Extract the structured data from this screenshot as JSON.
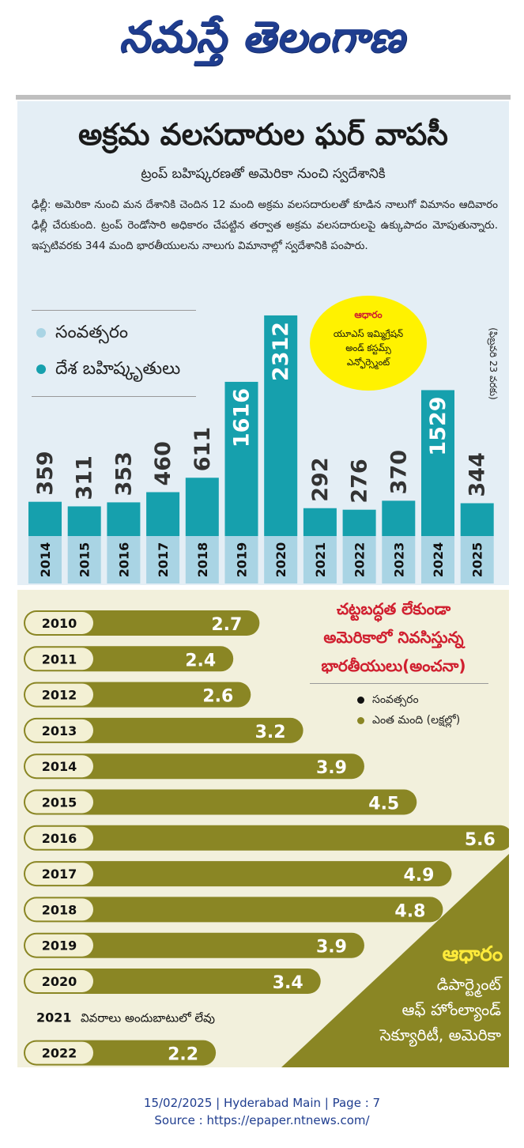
{
  "masthead": {
    "title": "నమస్తే తెలంగాణ"
  },
  "article": {
    "headline": "అక్రమ వలసదారుల ఘర్ వాపసీ",
    "subhead": "ట్రంప్ బహిష్కరణతో అమెరికా నుంచి స్వదేశానికి",
    "body": "ఢిల్లీ: అమెరికా నుంచి మన దేశానికి చెందిన 12 మంది అక్రమ వలసదారులతో కూడిన నాలుగో విమానం ఆదివారం ఢిల్లీ చేరుకుంది. ట్రంప్ రెండోసారి అధికారం చేపట్టిన తర్వాత అక్రమ వలసదారులపై ఉక్కుపాదం మోపుతున్నారు. ఇప్పటివరకు 344 మంది భారతీయులను నాలుగు విమానాల్లో స్వదేశానికి పంపారు."
  },
  "colors": {
    "bar_teal": "#16a0ad",
    "year_strip": "#a9d4e4",
    "olive": "#8a8624",
    "olive_dark": "#6e6a1a",
    "pill_bg": "#f3f0d4",
    "accent_red": "#d01f2f",
    "yellow": "#fff200",
    "navy": "#1f3d8f"
  },
  "chart_data": [
    {
      "type": "bar",
      "categories": [
        "2014",
        "2015",
        "2016",
        "2017",
        "2018",
        "2019",
        "2020",
        "2021",
        "2022",
        "2023",
        "2024",
        "2025"
      ],
      "values": [
        359,
        311,
        353,
        460,
        611,
        1616,
        2312,
        292,
        276,
        370,
        1529,
        344
      ],
      "highlight": [
        "2019",
        "2020",
        "2024"
      ],
      "legend": [
        {
          "label": "సంవత్సరం",
          "color": "#a9d4e4"
        },
        {
          "label": "దేశ బహిష్కృతులు",
          "color": "#16a0ad"
        }
      ],
      "source": {
        "heading": "ఆధారం",
        "lines": [
          "యూఎస్ ఇమ్మిగ్రేషన్",
          "అండ్ కస్టమ్స్",
          "ఎన్ఫోర్స్మెంట్"
        ]
      },
      "note": "(ఫిబ్రవరి 23 వరకు)",
      "legend_position": "left"
    },
    {
      "type": "bar",
      "orientation": "horizontal",
      "title": [
        "చట్టబద్ధత లేకుండా",
        "అమెరికాలో నివసిస్తున్న",
        "భారతీయులు(అంచనా)"
      ],
      "categories": [
        "2010",
        "2011",
        "2012",
        "2013",
        "2014",
        "2015",
        "2016",
        "2017",
        "2018",
        "2019",
        "2020",
        "2021",
        "2022"
      ],
      "values": [
        2.7,
        2.4,
        2.6,
        3.2,
        3.9,
        4.5,
        5.6,
        4.9,
        4.8,
        3.9,
        3.4,
        null,
        2.2
      ],
      "missing_note": "వివరాలు అందుబాటులో లేవు",
      "legend": [
        {
          "label": "సంవత్సరం",
          "color": "#111111"
        },
        {
          "label": "ఎంత మంది (లక్షల్లో)",
          "color": "#8a8624"
        }
      ],
      "source": {
        "heading": "ఆధారం",
        "lines": [
          "డిపార్ట్మెంట్",
          "ఆఫ్ హోంల్యాండ్",
          "సెక్యూరిటీ, అమెరికా"
        ]
      },
      "legend_position": "right"
    }
  ],
  "footer": {
    "line1": "15/02/2025 | Hyderabad Main | Page : 7",
    "line2": "Source : https://epaper.ntnews.com/"
  }
}
